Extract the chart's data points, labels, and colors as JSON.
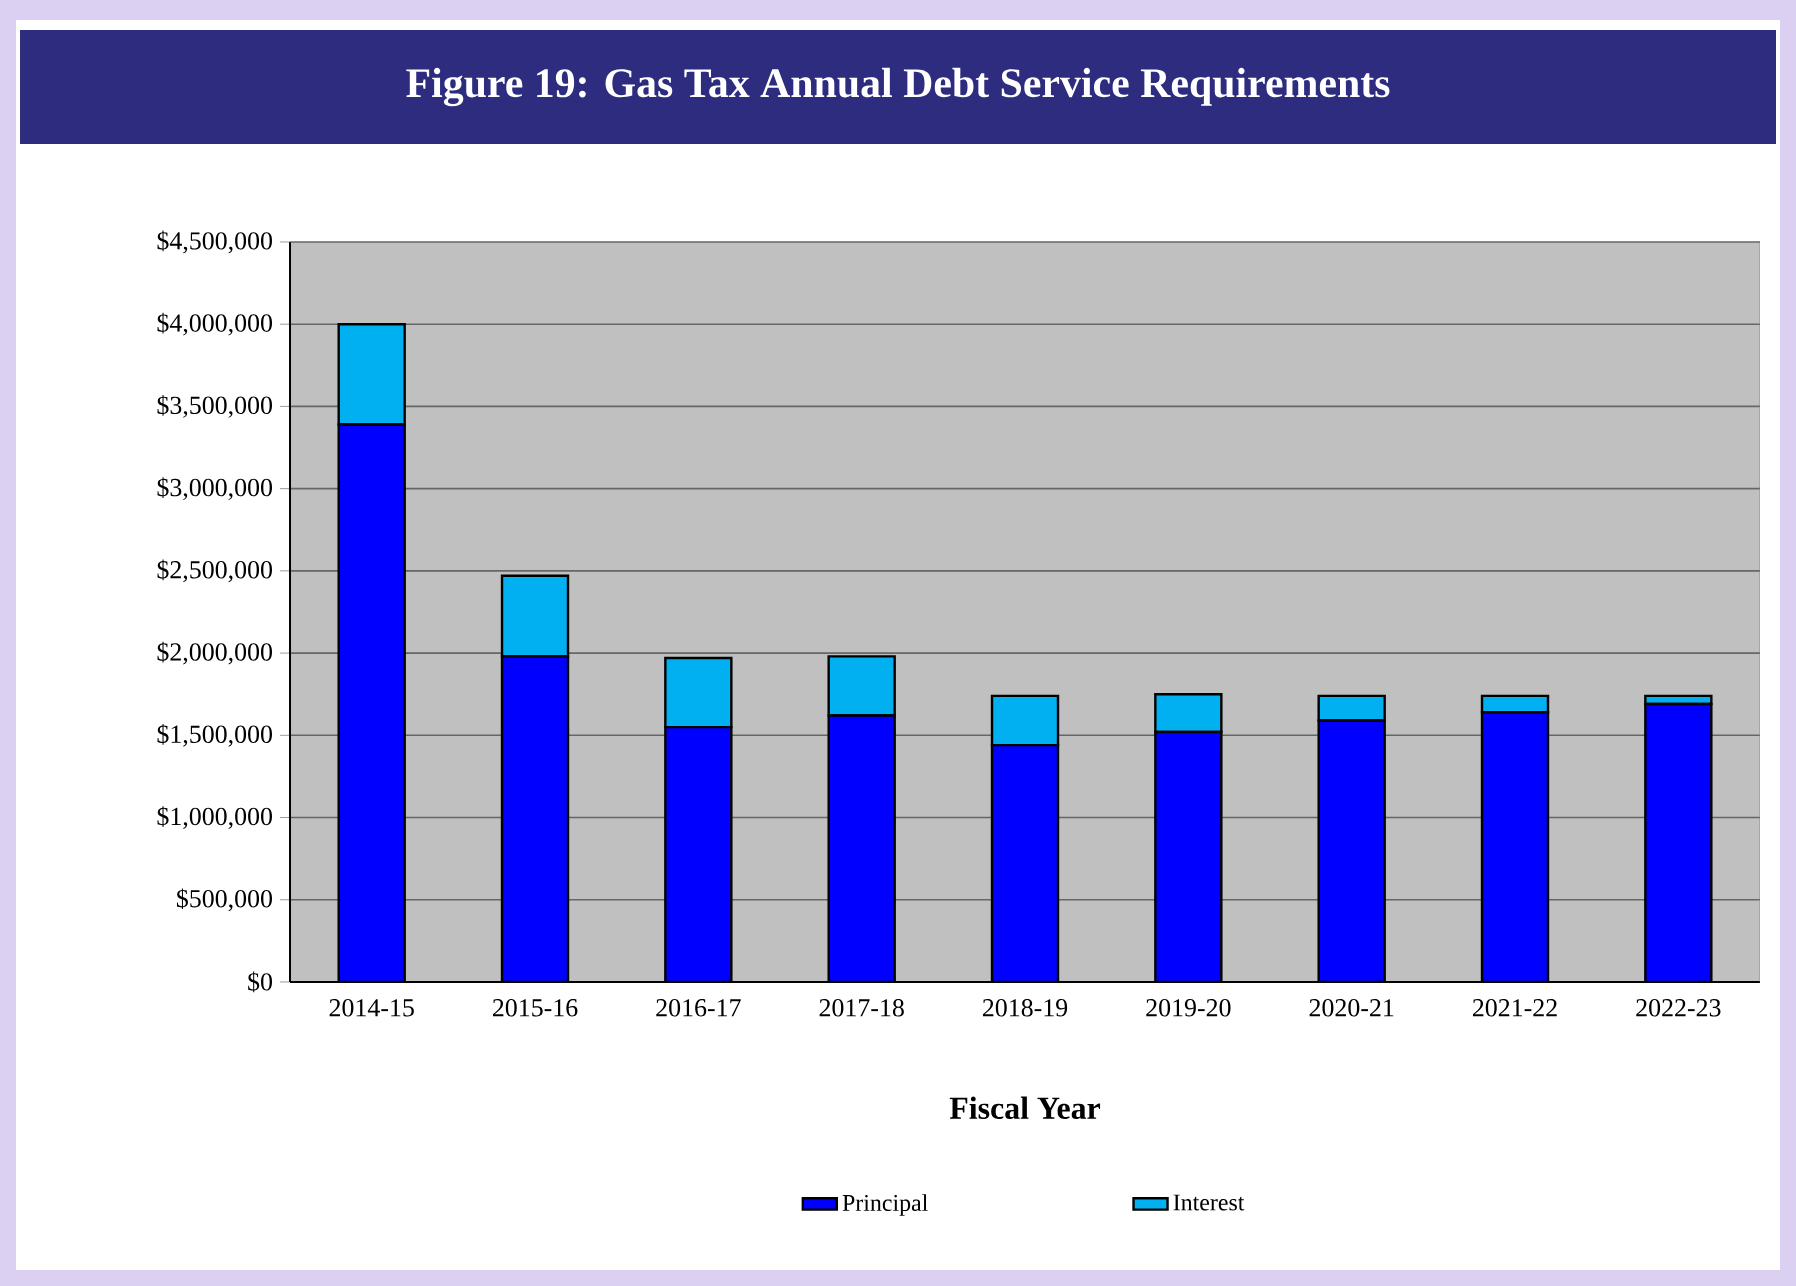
{
  "chart_data": {
    "type": "bar",
    "stacked": true,
    "title": "Figure 19: Gas Tax Annual Debt Service Requirements",
    "xlabel": "Fiscal Year",
    "categories": [
      "2014-15",
      "2015-16",
      "2016-17",
      "2017-18",
      "2018-19",
      "2019-20",
      "2020-21",
      "2021-22",
      "2022-23"
    ],
    "series": [
      {
        "name": "Principal",
        "color": "#0000ff",
        "values": [
          3390000,
          1980000,
          1550000,
          1620000,
          1440000,
          1520000,
          1590000,
          1640000,
          1690000
        ]
      },
      {
        "name": "Interest",
        "color": "#00b0f0",
        "values": [
          610000,
          490000,
          420000,
          360000,
          300000,
          230000,
          150000,
          100000,
          50000
        ]
      }
    ],
    "ylim": [
      0,
      4500000
    ],
    "yticks": [
      {
        "value": 0,
        "label": "$0"
      },
      {
        "value": 500000,
        "label": "$500,000"
      },
      {
        "value": 1000000,
        "label": "$1,000,000"
      },
      {
        "value": 1500000,
        "label": "$1,500,000"
      },
      {
        "value": 2000000,
        "label": "$2,000,000"
      },
      {
        "value": 2500000,
        "label": "$2,500,000"
      },
      {
        "value": 3000000,
        "label": "$3,000,000"
      },
      {
        "value": 3500000,
        "label": "$3,500,000"
      },
      {
        "value": 4000000,
        "label": "$4,000,000"
      },
      {
        "value": 4500000,
        "label": "$4,500,000"
      }
    ],
    "grid": "y",
    "legend": "bottom"
  }
}
